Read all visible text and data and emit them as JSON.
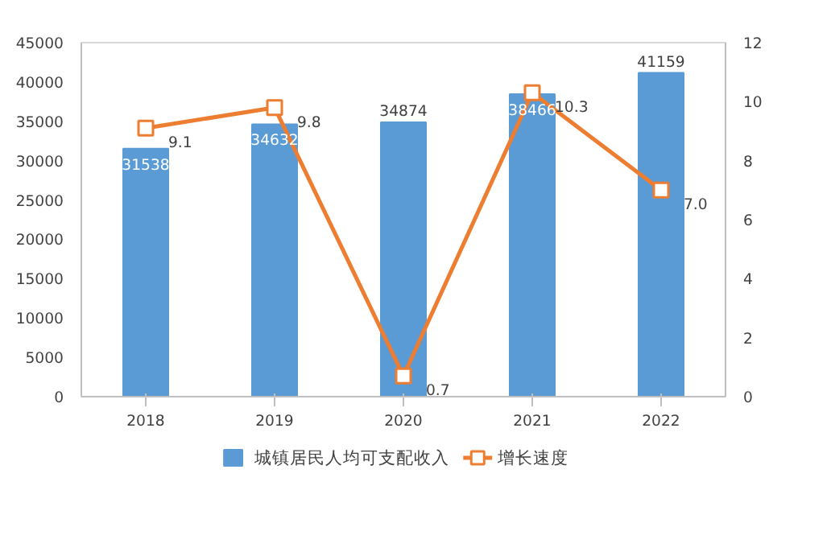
{
  "chart_data": {
    "type": "bar",
    "categories": [
      "2018",
      "2019",
      "2020",
      "2021",
      "2022"
    ],
    "series": [
      {
        "name": "城镇居民人均可支配收入",
        "color": "#5b9bd5",
        "values": [
          31538,
          34632,
          34874,
          38466,
          41159
        ],
        "value_labels": [
          "31538",
          "34632",
          "34874",
          "38466",
          "41159"
        ]
      },
      {
        "name": "增长速度",
        "type": "line",
        "axis": "y2",
        "color": "#ed7d31",
        "marker": "square",
        "values": [
          9.1,
          9.8,
          0.7,
          10.3,
          7.0
        ],
        "value_labels": [
          "9.1",
          "9.8",
          "0.7",
          "10.3",
          "7.0"
        ]
      }
    ],
    "ylim": [
      0,
      45000
    ],
    "yticks": [
      0,
      5000,
      10000,
      15000,
      20000,
      25000,
      30000,
      35000,
      40000,
      45000
    ],
    "y2lim": [
      0,
      12
    ],
    "y2ticks": [
      0,
      2,
      4,
      6,
      8,
      10,
      12
    ],
    "grid": false,
    "legend": "bottom"
  }
}
